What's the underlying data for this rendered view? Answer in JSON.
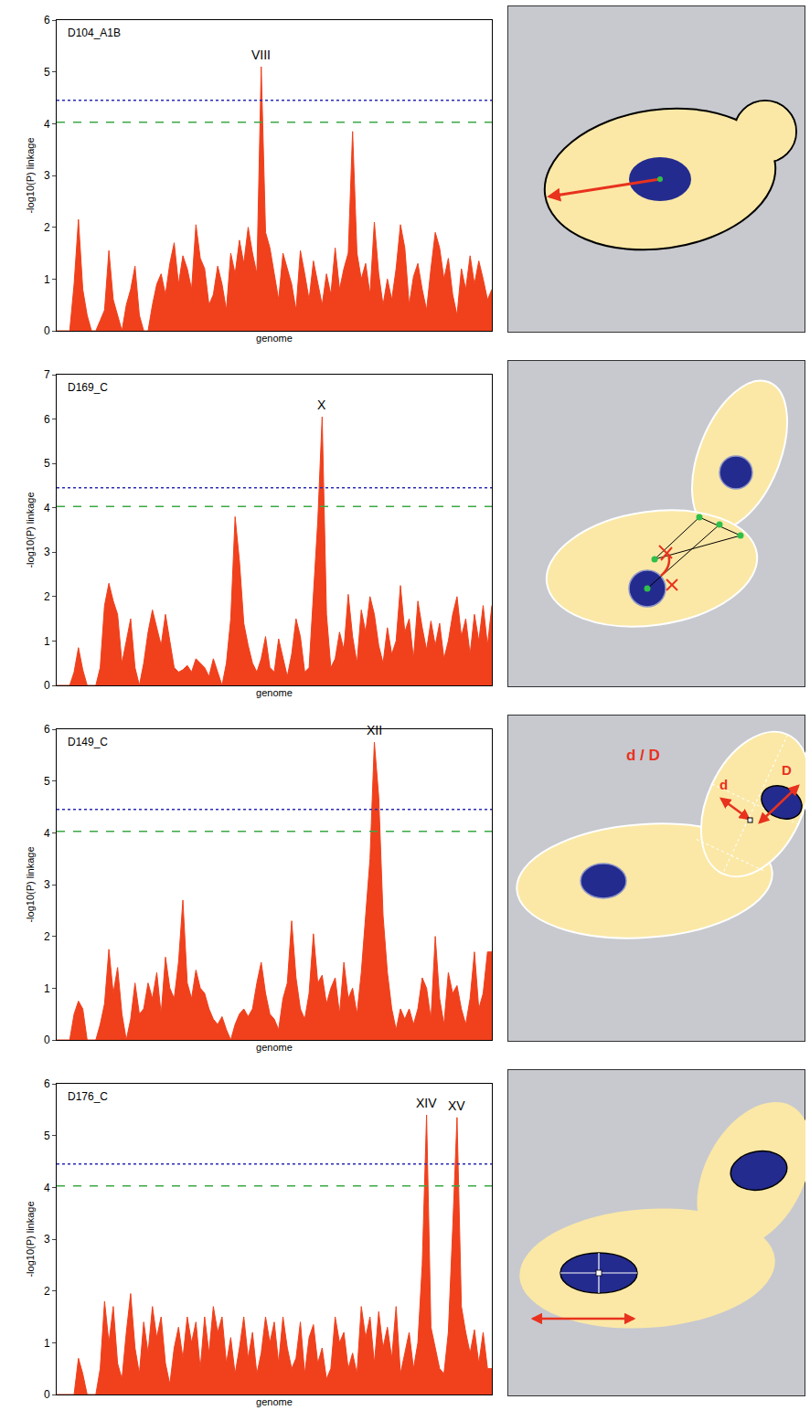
{
  "chart_data": [
    {
      "type": "area",
      "title": "D104_A1B",
      "x_label": "genome",
      "y_label": "-log10(P) linkage",
      "x": [
        0,
        1,
        2,
        3,
        4,
        5,
        6,
        7,
        8,
        9,
        10,
        11,
        12,
        13,
        14,
        15,
        16,
        17,
        18,
        19,
        20,
        21,
        22,
        23,
        24,
        25,
        26,
        27,
        28,
        29,
        30,
        31,
        32,
        33,
        34,
        35,
        36,
        37,
        38,
        39,
        40,
        41,
        42,
        43,
        44,
        45,
        46,
        47,
        48,
        49,
        50,
        51,
        52,
        53,
        54,
        55,
        56,
        57,
        58,
        59,
        60,
        61,
        62,
        63,
        64,
        65,
        66,
        67,
        68,
        69,
        70,
        71,
        72,
        73,
        74,
        75,
        76,
        77,
        78,
        79,
        80,
        81,
        82,
        83,
        84,
        85,
        86,
        87,
        88,
        89,
        90,
        91,
        92,
        93,
        94,
        95,
        96,
        97,
        98,
        99,
        100
      ],
      "values": [
        0,
        0,
        0,
        0,
        0.9,
        2.15,
        0.8,
        0.3,
        0,
        0,
        0.2,
        0.4,
        1.55,
        0.6,
        0.3,
        0,
        0.5,
        0.8,
        1.25,
        0.3,
        0,
        0,
        0.5,
        0.9,
        1.1,
        0.7,
        1.3,
        1.7,
        0.9,
        1.45,
        1.2,
        0.8,
        2.05,
        1.4,
        1.2,
        0.5,
        0.7,
        1.25,
        0.9,
        0.4,
        1.5,
        1.1,
        1.75,
        1.3,
        2.0,
        1.5,
        1.1,
        5.1,
        1.9,
        1.6,
        1.1,
        0.6,
        1.5,
        1.2,
        0.9,
        0.4,
        1.55,
        1.1,
        0.6,
        1.35,
        0.9,
        0.5,
        1.1,
        0.7,
        1.6,
        0.8,
        1.2,
        1.5,
        3.85,
        1.5,
        1.0,
        1.3,
        0.7,
        2.1,
        1.1,
        0.5,
        1.0,
        0.6,
        1.2,
        2.05,
        1.6,
        0.5,
        1.05,
        1.3,
        0.8,
        0.4,
        1.2,
        1.9,
        1.6,
        1.0,
        1.4,
        0.7,
        0.3,
        1.2,
        0.8,
        1.45,
        0.9,
        1.35,
        1.0,
        0.6,
        0.8
      ],
      "color": "#f0401c",
      "xlim": [
        0,
        100
      ],
      "ylim": [
        0,
        6
      ],
      "yticks": [
        0,
        1,
        2,
        3,
        4,
        5,
        6
      ],
      "tick_labels": "y",
      "thresholds": [
        {
          "value": 4.45,
          "color": "#2b2bb5",
          "line_style": "dotted"
        },
        {
          "value": 4.03,
          "color": "#3aa845",
          "line_style": "dashed"
        }
      ],
      "annotations": [
        {
          "text": "VIII",
          "x": 47
        }
      ]
    },
    {
      "type": "area",
      "title": "D169_C",
      "x_label": "genome",
      "y_label": "-log10(P) linkage",
      "x": [
        0,
        1,
        2,
        3,
        4,
        5,
        6,
        7,
        8,
        9,
        10,
        11,
        12,
        13,
        14,
        15,
        16,
        17,
        18,
        19,
        20,
        21,
        22,
        23,
        24,
        25,
        26,
        27,
        28,
        29,
        30,
        31,
        32,
        33,
        34,
        35,
        36,
        37,
        38,
        39,
        40,
        41,
        42,
        43,
        44,
        45,
        46,
        47,
        48,
        49,
        50,
        51,
        52,
        53,
        54,
        55,
        56,
        57,
        58,
        59,
        60,
        61,
        62,
        63,
        64,
        65,
        66,
        67,
        68,
        69,
        70,
        71,
        72,
        73,
        74,
        75,
        76,
        77,
        78,
        79,
        80,
        81,
        82,
        83,
        84,
        85,
        86,
        87,
        88,
        89,
        90,
        91,
        92,
        93,
        94,
        95,
        96,
        97,
        98,
        99,
        100
      ],
      "values": [
        0,
        0,
        0,
        0,
        0.3,
        0.85,
        0.35,
        0,
        0,
        0,
        0.4,
        1.8,
        2.3,
        1.9,
        1.6,
        0.5,
        1.0,
        1.5,
        0.4,
        0,
        0.5,
        1.2,
        1.7,
        1.3,
        0.9,
        1.6,
        1.0,
        0.4,
        0.3,
        0.35,
        0.45,
        0.3,
        0.6,
        0.5,
        0.4,
        0.2,
        0.6,
        0.3,
        0,
        0.5,
        1.5,
        3.8,
        2.8,
        1.4,
        0.9,
        0.5,
        0.3,
        0.6,
        1.1,
        0.4,
        0.3,
        1.05,
        0.6,
        0.2,
        0.7,
        1.5,
        1.1,
        0.3,
        0.4,
        2.0,
        3.7,
        6.05,
        1.6,
        0.4,
        0.6,
        1.2,
        0.8,
        2.05,
        1.1,
        0.5,
        1.7,
        1.2,
        2.0,
        1.6,
        0.9,
        0.5,
        1.3,
        0.7,
        1.0,
        2.25,
        1.2,
        1.5,
        0.6,
        1.9,
        1.3,
        0.8,
        1.45,
        0.9,
        1.4,
        0.6,
        1.0,
        1.6,
        2.0,
        1.1,
        1.5,
        0.7,
        1.6,
        1.0,
        1.8,
        0.9,
        1.8
      ],
      "color": "#f0401c",
      "xlim": [
        0,
        100
      ],
      "ylim": [
        0,
        7
      ],
      "yticks": [
        0,
        1,
        2,
        3,
        4,
        5,
        6,
        7
      ],
      "tick_labels": "y",
      "thresholds": [
        {
          "value": 4.45,
          "color": "#2b2bb5",
          "line_style": "dotted"
        },
        {
          "value": 4.03,
          "color": "#3aa845",
          "line_style": "dashed"
        }
      ],
      "annotations": [
        {
          "text": "X",
          "x": 61
        }
      ]
    },
    {
      "type": "area",
      "title": "D149_C",
      "x_label": "genome",
      "y_label": "-log10(P) linkage",
      "x": [
        0,
        1,
        2,
        3,
        4,
        5,
        6,
        7,
        8,
        9,
        10,
        11,
        12,
        13,
        14,
        15,
        16,
        17,
        18,
        19,
        20,
        21,
        22,
        23,
        24,
        25,
        26,
        27,
        28,
        29,
        30,
        31,
        32,
        33,
        34,
        35,
        36,
        37,
        38,
        39,
        40,
        41,
        42,
        43,
        44,
        45,
        46,
        47,
        48,
        49,
        50,
        51,
        52,
        53,
        54,
        55,
        56,
        57,
        58,
        59,
        60,
        61,
        62,
        63,
        64,
        65,
        66,
        67,
        68,
        69,
        70,
        71,
        72,
        73,
        74,
        75,
        76,
        77,
        78,
        79,
        80,
        81,
        82,
        83,
        84,
        85,
        86,
        87,
        88,
        89,
        90,
        91,
        92,
        93,
        94,
        95,
        96,
        97,
        98,
        99,
        100
      ],
      "values": [
        0,
        0,
        0,
        0,
        0.5,
        0.75,
        0.6,
        0,
        0,
        0,
        0.3,
        0.7,
        1.75,
        0.9,
        1.4,
        0.5,
        0,
        0.4,
        1.1,
        0.5,
        0.6,
        1.1,
        0.8,
        1.3,
        0.5,
        1.6,
        1.0,
        0.8,
        1.5,
        2.7,
        1.1,
        0.8,
        1.35,
        1.0,
        0.9,
        0.6,
        0.4,
        0.3,
        0.45,
        0.2,
        0,
        0.3,
        0.5,
        0.6,
        0.45,
        0.6,
        1.1,
        1.5,
        0.9,
        0.5,
        0.4,
        0.2,
        0.8,
        1.1,
        2.3,
        1.2,
        0.6,
        0.4,
        0.9,
        2.05,
        1.1,
        1.25,
        0.7,
        1.0,
        1.2,
        0.5,
        1.5,
        0.8,
        1.0,
        0.5,
        1.3,
        2.4,
        3.5,
        5.75,
        4.7,
        2.4,
        1.3,
        0.6,
        0.2,
        0.6,
        0.4,
        0.6,
        0.3,
        0.6,
        1.2,
        1.0,
        0.4,
        2.0,
        0.8,
        0.3,
        1.3,
        0.9,
        1.05,
        0.6,
        0.3,
        0.8,
        1.7,
        0.6,
        0.9,
        1.7,
        1.7
      ],
      "color": "#f0401c",
      "xlim": [
        0,
        100
      ],
      "ylim": [
        0,
        6
      ],
      "yticks": [
        0,
        1,
        2,
        3,
        4,
        5,
        6
      ],
      "tick_labels": "y",
      "thresholds": [
        {
          "value": 4.45,
          "color": "#2b2bb5",
          "line_style": "dotted"
        },
        {
          "value": 4.03,
          "color": "#3aa845",
          "line_style": "dashed"
        }
      ],
      "annotations": [
        {
          "text": "XII",
          "x": 73
        }
      ]
    },
    {
      "type": "area",
      "title": "D176_C",
      "x_label": "genome",
      "y_label": "-log10(P) linkage",
      "x": [
        0,
        1,
        2,
        3,
        4,
        5,
        6,
        7,
        8,
        9,
        10,
        11,
        12,
        13,
        14,
        15,
        16,
        17,
        18,
        19,
        20,
        21,
        22,
        23,
        24,
        25,
        26,
        27,
        28,
        29,
        30,
        31,
        32,
        33,
        34,
        35,
        36,
        37,
        38,
        39,
        40,
        41,
        42,
        43,
        44,
        45,
        46,
        47,
        48,
        49,
        50,
        51,
        52,
        53,
        54,
        55,
        56,
        57,
        58,
        59,
        60,
        61,
        62,
        63,
        64,
        65,
        66,
        67,
        68,
        69,
        70,
        71,
        72,
        73,
        74,
        75,
        76,
        77,
        78,
        79,
        80,
        81,
        82,
        83,
        84,
        85,
        86,
        87,
        88,
        89,
        90,
        91,
        92,
        93,
        94,
        95,
        96,
        97,
        98,
        99,
        100
      ],
      "values": [
        0,
        0,
        0,
        0,
        0,
        0.7,
        0.4,
        0,
        0,
        0,
        0.5,
        1.8,
        1.0,
        1.7,
        0.6,
        0.3,
        1.2,
        1.95,
        0.9,
        0.4,
        1.4,
        0.8,
        1.7,
        1.1,
        1.5,
        0.6,
        0.2,
        0.9,
        1.3,
        0.7,
        1.5,
        1.0,
        1.4,
        0.5,
        1.5,
        0.8,
        1.7,
        1.2,
        1.5,
        0.6,
        1.1,
        0.4,
        0.9,
        1.5,
        0.7,
        1.2,
        0.4,
        0.8,
        1.5,
        1.0,
        1.4,
        0.6,
        1.5,
        0.9,
        0.5,
        0.7,
        1.4,
        0.4,
        1.1,
        1.35,
        0.6,
        0.9,
        0.3,
        0.5,
        1.5,
        1.0,
        1.2,
        0.5,
        0.8,
        0.4,
        1.7,
        1.1,
        1.5,
        0.6,
        1.6,
        0.9,
        1.3,
        0.7,
        1.7,
        0.4,
        0.8,
        1.2,
        0.5,
        1.0,
        2.5,
        5.4,
        1.3,
        0.9,
        0.5,
        0.4,
        1.2,
        3.2,
        5.35,
        1.7,
        1.2,
        0.8,
        1.25,
        0.6,
        1.2,
        0.5,
        0.5
      ],
      "color": "#f0401c",
      "xlim": [
        0,
        100
      ],
      "ylim": [
        0,
        6
      ],
      "yticks": [
        0,
        1,
        2,
        3,
        4,
        5,
        6
      ],
      "tick_labels": "y",
      "thresholds": [
        {
          "value": 4.45,
          "color": "#2b2bb5",
          "line_style": "dotted"
        },
        {
          "value": 4.03,
          "color": "#3aa845",
          "line_style": "dashed"
        }
      ],
      "annotations": [
        {
          "text": "XIV",
          "x": 85
        },
        {
          "text": "XV",
          "x": 92
        }
      ]
    }
  ],
  "diagram_labels": {
    "ratio": "d / D",
    "short": "d",
    "long": "D"
  }
}
